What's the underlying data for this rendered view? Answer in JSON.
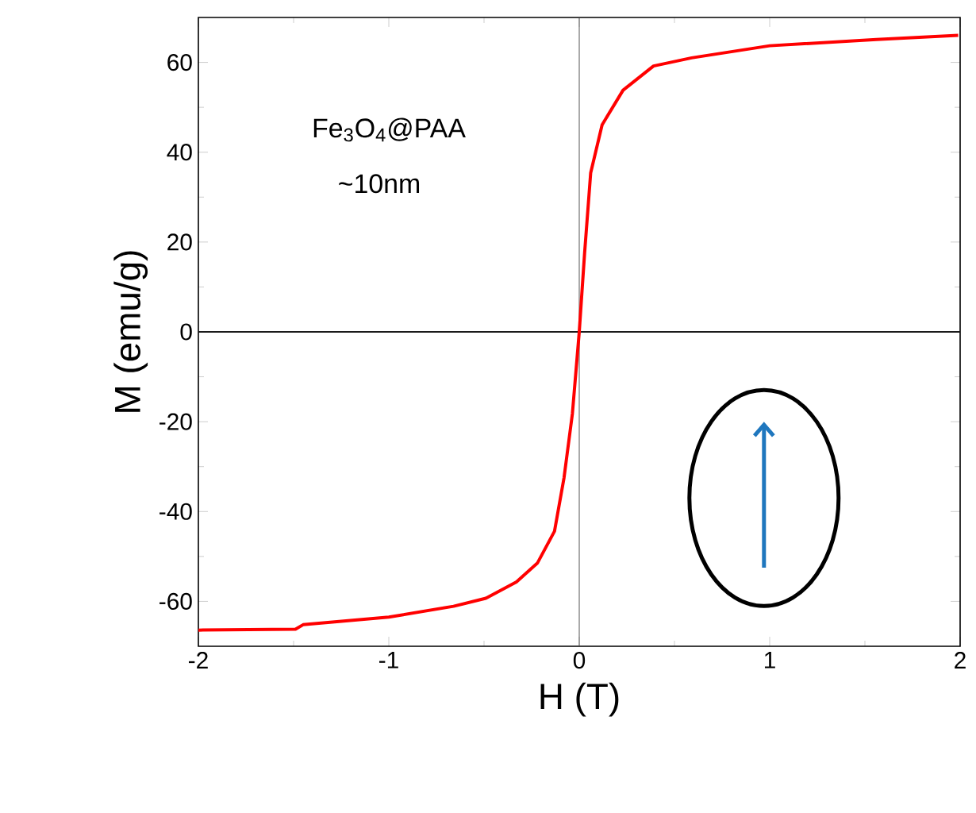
{
  "chart_data": {
    "type": "line",
    "xlabel": "H (T)",
    "ylabel": "M (emu/g)",
    "x": [
      -2.0,
      -1.49,
      -1.45,
      -1.0,
      -0.66,
      -0.49,
      -0.33,
      -0.22,
      -0.13,
      -0.08,
      -0.036,
      0,
      0.028,
      0.06,
      0.12,
      0.23,
      0.39,
      0.59,
      1.0,
      1.56,
      1.99
    ],
    "series": [
      {
        "color": "#ff0000",
        "values": [
          -66.4,
          -66.2,
          -65.2,
          -63.5,
          -61.1,
          -59.3,
          -55.7,
          -51.5,
          -44.4,
          -32.5,
          -18.2,
          0,
          17.5,
          35.4,
          46.1,
          53.8,
          59.2,
          61,
          63.7,
          65.1,
          66
        ]
      }
    ],
    "xlim": [
      -2,
      2
    ],
    "ylim": [
      -70,
      70
    ],
    "xticks": [
      -2,
      -1,
      0,
      1,
      2
    ],
    "yticks": [
      -60,
      -40,
      -20,
      0,
      20,
      40,
      60
    ],
    "ref_lines": [
      {
        "axis": "x",
        "value": 0,
        "color": "#555555"
      },
      {
        "axis": "y",
        "value": 0,
        "color": "#1a1a1a"
      }
    ],
    "annotations": [
      "Fe$_{3}$O$_{4}$@PAA",
      "~10nm"
    ],
    "marker": "none",
    "line_style": "solid"
  }
}
